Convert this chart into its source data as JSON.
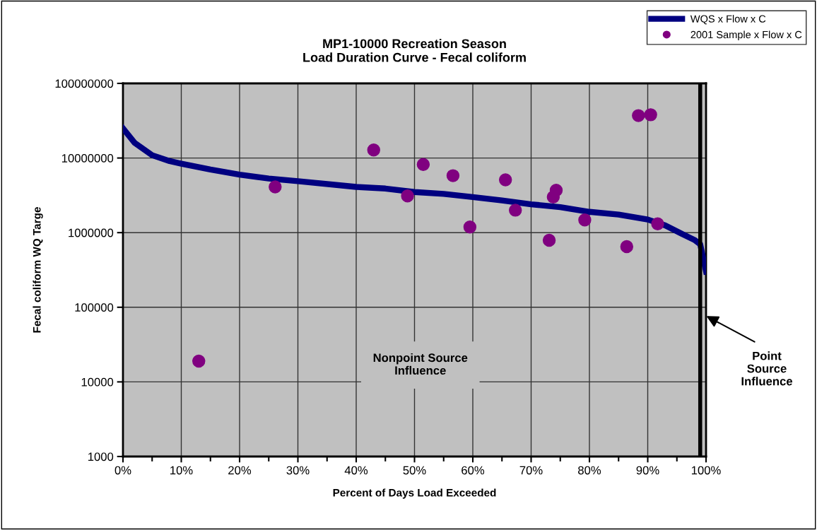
{
  "chart_data": {
    "type": "line",
    "title": "MP1-10000 Recreation Season\nLoad Duration Curve - Fecal coliform",
    "xlabel": "Percent of Days Load Exceeded",
    "ylabel": "Fecal coliform WQ Targe",
    "log": "y",
    "grid": true,
    "legend": "top right",
    "xlim": [
      0,
      100
    ],
    "ylim": [
      1000,
      100000000
    ],
    "xticks": [
      {
        "value": 0,
        "label": "0%"
      },
      {
        "value": 5,
        "label": null
      },
      {
        "value": 10,
        "label": "10%"
      },
      {
        "value": 15,
        "label": null
      },
      {
        "value": 20,
        "label": "20%"
      },
      {
        "value": 25,
        "label": null
      },
      {
        "value": 30,
        "label": "30%"
      },
      {
        "value": 35,
        "label": null
      },
      {
        "value": 40,
        "label": "40%"
      },
      {
        "value": 45,
        "label": null
      },
      {
        "value": 50,
        "label": "50%"
      },
      {
        "value": 55,
        "label": null
      },
      {
        "value": 60,
        "label": "60%"
      },
      {
        "value": 65,
        "label": null
      },
      {
        "value": 70,
        "label": "70%"
      },
      {
        "value": 75,
        "label": null
      },
      {
        "value": 80,
        "label": "80%"
      },
      {
        "value": 85,
        "label": null
      },
      {
        "value": 90,
        "label": "90%"
      },
      {
        "value": 95,
        "label": null
      },
      {
        "value": 100,
        "label": "100%"
      }
    ],
    "yticks": [
      1000,
      10000,
      100000,
      1000000,
      10000000,
      100000000
    ],
    "series": [
      {
        "name": "WQS x Flow x C",
        "color": "#000080",
        "x": [
          0,
          2,
          5,
          8,
          10,
          15,
          20,
          25,
          30,
          40,
          45,
          50,
          55,
          60,
          65,
          70,
          75,
          80,
          85,
          90,
          93,
          96,
          98,
          99,
          100
        ],
        "values": [
          25000000,
          16000000,
          10900000,
          9100000,
          8400000,
          7000000,
          6000000,
          5300000,
          4900000,
          4100000,
          3900000,
          3500000,
          3300000,
          3000000,
          2700000,
          2400000,
          2200000,
          1900000,
          1750000,
          1500000,
          1250000,
          950000,
          800000,
          700000,
          300000
        ]
      },
      {
        "name": "2001 Sample x Flow x C",
        "type": "scatter",
        "color": "#800080",
        "marker": "circle",
        "x": [
          13.0,
          26.1,
          43.0,
          48.8,
          51.5,
          56.6,
          59.5,
          65.6,
          67.3,
          73.1,
          73.8,
          74.3,
          79.2,
          86.4,
          88.4,
          90.5,
          91.7
        ],
        "values": [
          19000,
          4100000,
          12800000,
          3100000,
          8200000,
          5800000,
          1190000,
          5100000,
          2000000,
          790000,
          3000000,
          3700000,
          1480000,
          650000,
          37000000,
          38000000,
          1310000
        ]
      }
    ],
    "ref_lines": [
      {
        "axis": "x",
        "value": 99,
        "color": "#000000"
      }
    ],
    "annotations": [
      "Nonpoint Source\nInfluence",
      "Point\nSource\nInfluence"
    ]
  }
}
